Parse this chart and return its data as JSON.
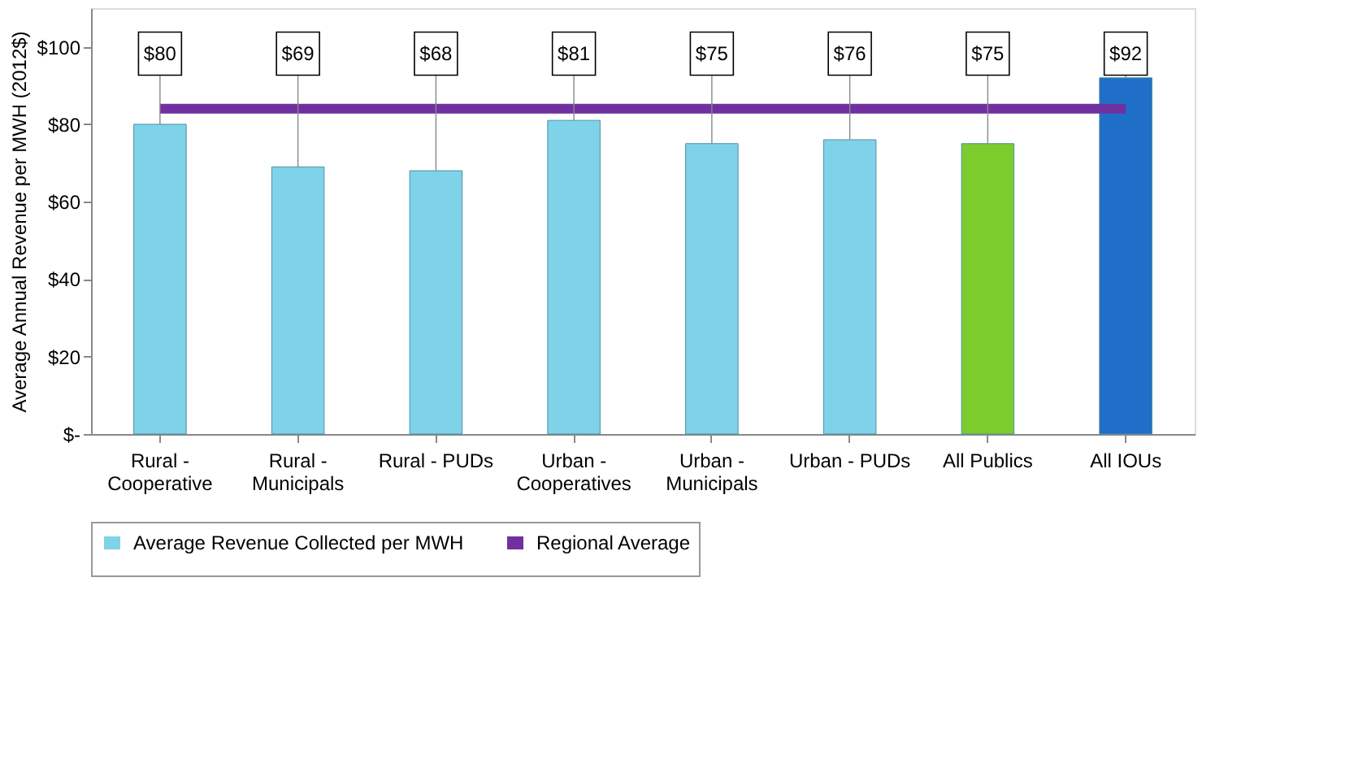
{
  "chart_data": {
    "type": "bar",
    "ylabel": "Average Annual Revenue per MWH  (2012$)",
    "categories": [
      "Rural -\nCooperative",
      "Rural -\nMunicipals",
      "Rural - PUDs",
      "Urban -\nCooperatives",
      "Urban -\nMunicipals",
      "Urban - PUDs",
      "All Publics",
      "All IOUs"
    ],
    "series": [
      {
        "name": "Average Revenue Collected per MWH",
        "color": "#7fd3e8",
        "colors": [
          "#7fd3e8",
          "#7fd3e8",
          "#7fd3e8",
          "#7fd3e8",
          "#7fd3e8",
          "#7fd3e8",
          "#7ccc2e",
          "#1f6fc8"
        ],
        "values": [
          80,
          69,
          68,
          81,
          75,
          76,
          75,
          92
        ],
        "value_labels": [
          "$80",
          "$69",
          "$68",
          "$81",
          "$75",
          "$76",
          "$75",
          "$92"
        ]
      },
      {
        "name": "Regional Average",
        "type": "line",
        "color": "#7030a0",
        "values": [
          84,
          84,
          84,
          84,
          84,
          84,
          84,
          84
        ]
      }
    ],
    "ylim": [
      0,
      110
    ],
    "yticks": [
      {
        "value": 0,
        "label": "$-"
      },
      {
        "value": 20,
        "label": "$20"
      },
      {
        "value": 40,
        "label": "$40"
      },
      {
        "value": 60,
        "label": "$60"
      },
      {
        "value": 80,
        "label": "$80"
      },
      {
        "value": 100,
        "label": "$100"
      }
    ],
    "grid": false,
    "legend": "bottom"
  }
}
